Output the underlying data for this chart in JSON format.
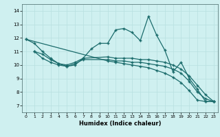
{
  "xlabel": "Humidex (Indice chaleur)",
  "bg_color": "#cff0f0",
  "grid_color": "#b8e0e0",
  "line_color": "#1a6b6b",
  "xlim": [
    -0.5,
    23.5
  ],
  "ylim": [
    6.5,
    14.5
  ],
  "yticks": [
    7,
    8,
    9,
    10,
    11,
    12,
    13,
    14
  ],
  "xticks": [
    0,
    1,
    2,
    3,
    4,
    5,
    6,
    7,
    8,
    9,
    10,
    11,
    12,
    13,
    14,
    15,
    16,
    17,
    18,
    19,
    20,
    21,
    22,
    23
  ],
  "line1_x": [
    0,
    1,
    2,
    3,
    4,
    5,
    6,
    7,
    8,
    9,
    10,
    11,
    12,
    13,
    14,
    15,
    16,
    17,
    18,
    19,
    20,
    21,
    22,
    23
  ],
  "line1_y": [
    11.9,
    11.6,
    11.0,
    10.5,
    10.1,
    9.9,
    10.0,
    10.5,
    11.2,
    11.6,
    11.6,
    12.6,
    12.7,
    12.4,
    11.8,
    13.6,
    12.2,
    11.1,
    9.5,
    10.2,
    9.0,
    8.2,
    7.3,
    7.3
  ],
  "line2_x": [
    1,
    2,
    3,
    4,
    5,
    6,
    7,
    10,
    11,
    12,
    13,
    14,
    15,
    16,
    17,
    18,
    19,
    20,
    21,
    22,
    23
  ],
  "line2_y": [
    11.0,
    10.8,
    10.4,
    10.1,
    10.0,
    10.2,
    10.5,
    10.6,
    10.5,
    10.5,
    10.5,
    10.4,
    10.4,
    10.3,
    10.2,
    10.0,
    9.7,
    9.2,
    8.5,
    7.8,
    7.3
  ],
  "line3_x": [
    1,
    2,
    3,
    4,
    5,
    6,
    7,
    10,
    11,
    12,
    13,
    14,
    15,
    16,
    17,
    18,
    19,
    20,
    21,
    22,
    23
  ],
  "line3_y": [
    11.0,
    10.5,
    10.2,
    10.0,
    9.9,
    10.1,
    10.4,
    10.4,
    10.3,
    10.3,
    10.2,
    10.2,
    10.1,
    10.0,
    9.9,
    9.7,
    9.4,
    8.8,
    8.0,
    7.5,
    7.3
  ],
  "line4_x": [
    0,
    10,
    11,
    12,
    13,
    14,
    15,
    16,
    17,
    18,
    19,
    20,
    21,
    22,
    23
  ],
  "line4_y": [
    11.9,
    10.3,
    10.2,
    10.1,
    10.0,
    9.9,
    9.8,
    9.6,
    9.4,
    9.1,
    8.7,
    8.1,
    7.4,
    7.3,
    7.3
  ]
}
